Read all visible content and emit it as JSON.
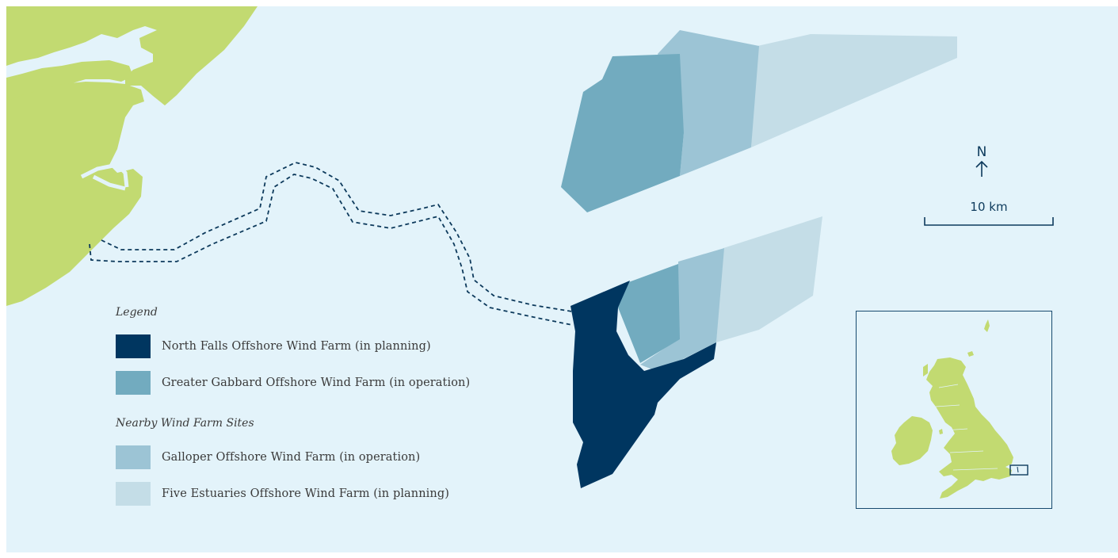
{
  "legend": {
    "heading": "Legend",
    "items": [
      {
        "label": "North Falls Offshore Wind Farm (in planning)",
        "color": "#003660"
      },
      {
        "label": "Greater Gabbard Offshore Wind Farm (in operation)",
        "color": "#72abbf"
      }
    ],
    "nearby_heading": "Nearby Wind Farm Sites",
    "nearby_items": [
      {
        "label": "Galloper Offshore Wind Farm (in operation)",
        "color": "#9cc4d5"
      },
      {
        "label": "Five Estuaries Offshore Wind Farm (in planning)",
        "color": "#c4dde7"
      }
    ]
  },
  "north_arrow": {
    "letter": "N"
  },
  "scale_bar": {
    "label": "10 km"
  },
  "colors": {
    "sea": "#e3f3fa",
    "land": "#c2da71",
    "cable_route": "#0d3a5c",
    "frame": "#184a6e"
  }
}
